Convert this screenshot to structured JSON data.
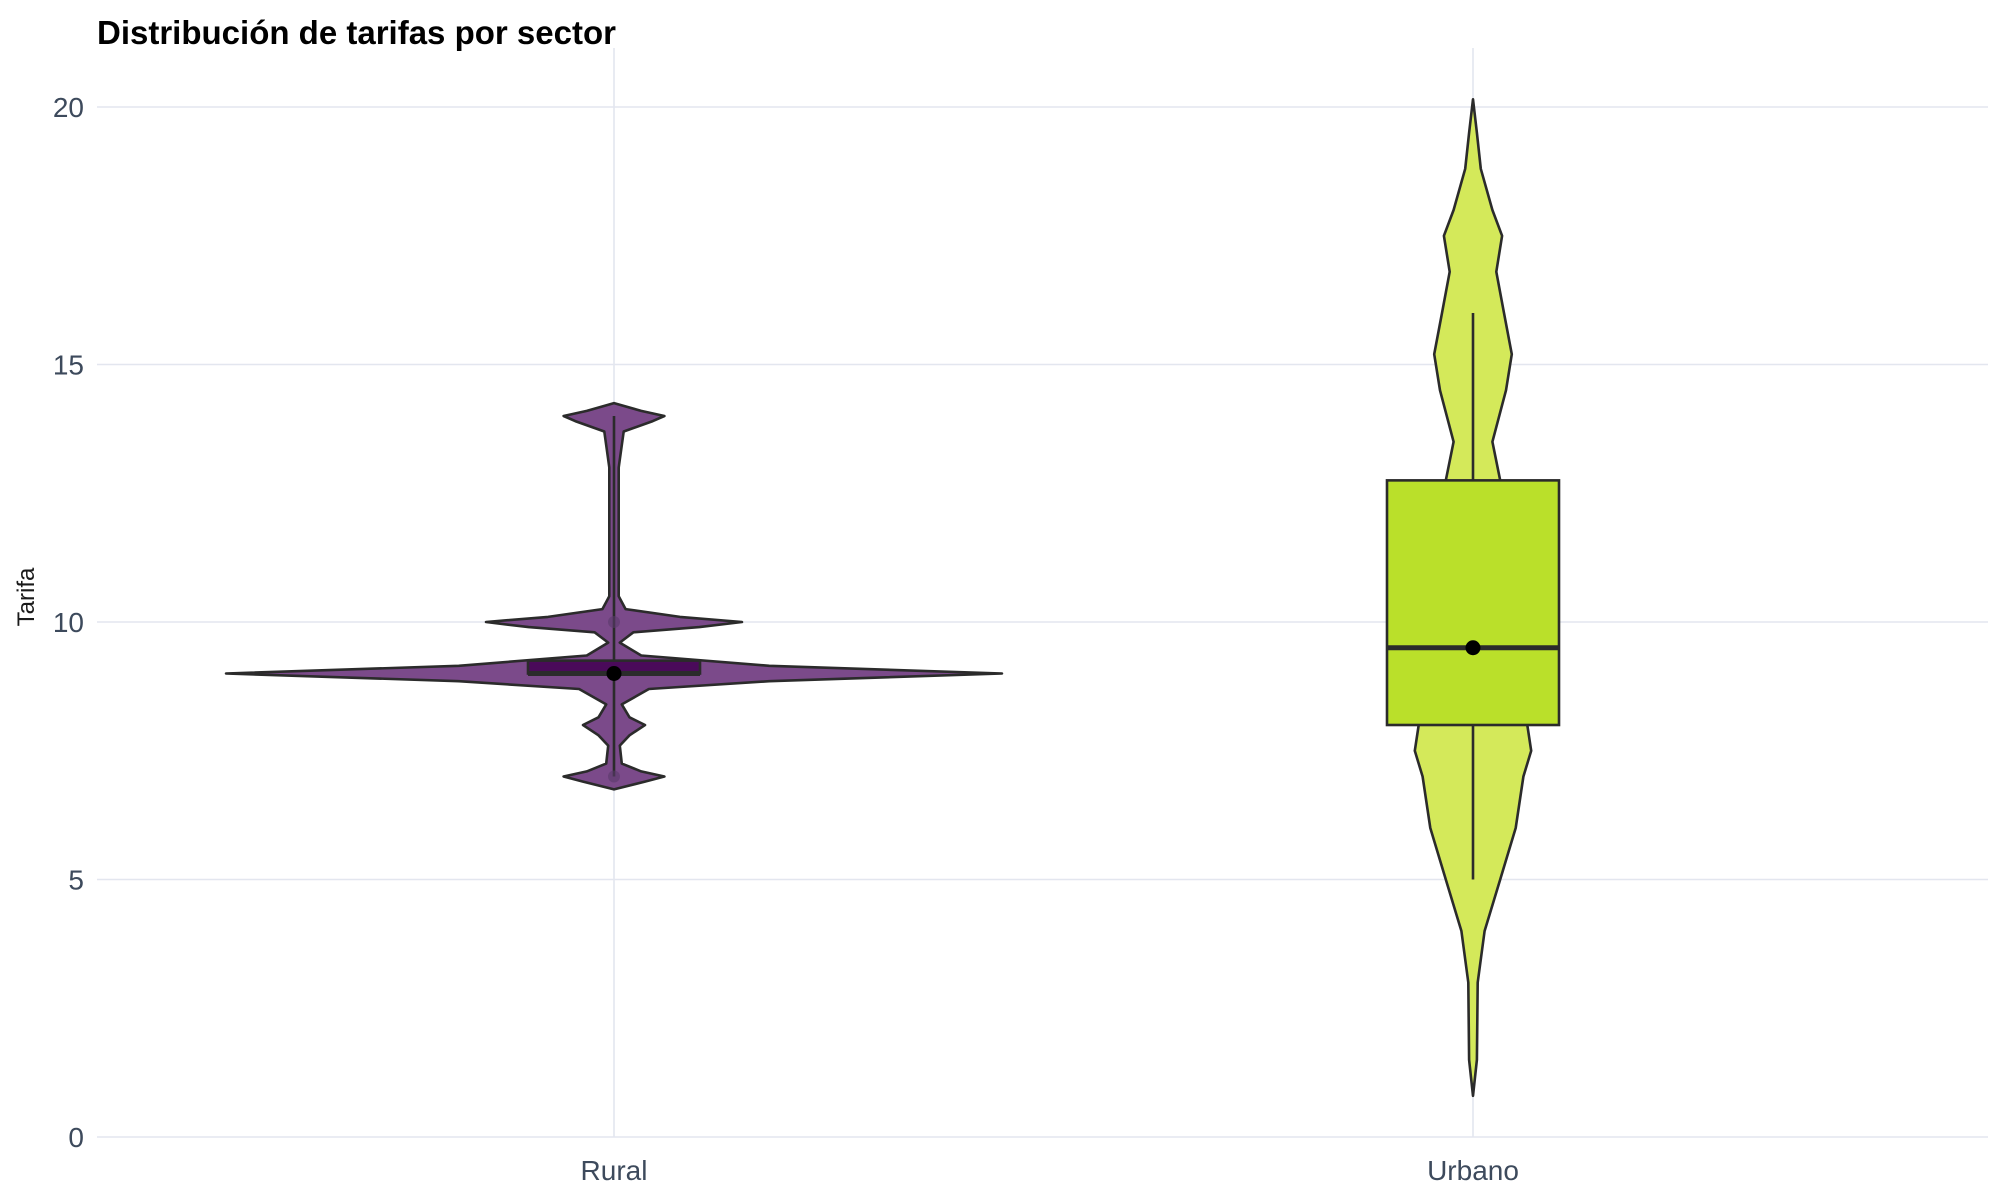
{
  "chart_data": {
    "type": "violin",
    "title": "Distribución de tarifas por sector",
    "xlabel": "",
    "ylabel": "Tarifa",
    "ylim": [
      0,
      21.2
    ],
    "yticks": [
      0,
      5,
      10,
      15,
      20
    ],
    "categories": [
      "Rural",
      "Urbano"
    ],
    "grid": true,
    "legend": "none",
    "groups": [
      {
        "name": "Rural",
        "violin_color": "#7b4a8a",
        "box_color": "#4a0a5a",
        "min": 7,
        "q1": 9,
        "median": 9,
        "q3": 9.25,
        "max": 14,
        "mean": 9,
        "density": [
          [
            6.75,
            0
          ],
          [
            6.9,
            0.08
          ],
          [
            7,
            0.13
          ],
          [
            7.1,
            0.07
          ],
          [
            7.25,
            0.02
          ],
          [
            7.6,
            0.015
          ],
          [
            7.8,
            0.04
          ],
          [
            8,
            0.08
          ],
          [
            8.15,
            0.04
          ],
          [
            8.4,
            0.02
          ],
          [
            8.7,
            0.09
          ],
          [
            8.85,
            0.4
          ],
          [
            9,
            1
          ],
          [
            9.15,
            0.4
          ],
          [
            9.35,
            0.07
          ],
          [
            9.6,
            0.015
          ],
          [
            9.8,
            0.05
          ],
          [
            9.9,
            0.22
          ],
          [
            10,
            0.33
          ],
          [
            10.1,
            0.17
          ],
          [
            10.25,
            0.03
          ],
          [
            10.5,
            0.012
          ],
          [
            11,
            0.012
          ],
          [
            12,
            0.012
          ],
          [
            13,
            0.012
          ],
          [
            13.7,
            0.025
          ],
          [
            13.9,
            0.1
          ],
          [
            14,
            0.13
          ],
          [
            14.1,
            0.07
          ],
          [
            14.25,
            0
          ]
        ]
      },
      {
        "name": "Urbano",
        "violin_color": "#d4e95a",
        "box_color": "#bae02a",
        "min": 5,
        "q1": 8,
        "median": 9.5,
        "q3": 12.75,
        "max": 16,
        "mean": 9.5,
        "density": [
          [
            0.8,
            0
          ],
          [
            1.5,
            0.01
          ],
          [
            3,
            0.012
          ],
          [
            4,
            0.03
          ],
          [
            5,
            0.07
          ],
          [
            6,
            0.11
          ],
          [
            7,
            0.13
          ],
          [
            7.5,
            0.15
          ],
          [
            8,
            0.14
          ],
          [
            9,
            0.15
          ],
          [
            10,
            0.15
          ],
          [
            11,
            0.13
          ],
          [
            12,
            0.11
          ],
          [
            12.75,
            0.07
          ],
          [
            13.5,
            0.05
          ],
          [
            14.5,
            0.085
          ],
          [
            15.2,
            0.1
          ],
          [
            16,
            0.08
          ],
          [
            16.8,
            0.06
          ],
          [
            17.5,
            0.075
          ],
          [
            18,
            0.05
          ],
          [
            18.8,
            0.02
          ],
          [
            19.5,
            0.01
          ],
          [
            20.15,
            0
          ]
        ]
      }
    ]
  }
}
